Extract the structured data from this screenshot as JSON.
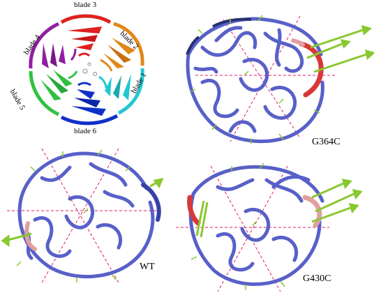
{
  "blade_labels": {
    "b1": "blade 1",
    "b2": "blade 2",
    "b3": "blade 3",
    "b4": "blade 4",
    "b5": "blade 5",
    "b6": "blade 6"
  },
  "panel_labels": {
    "g364c": "G364C",
    "wt": "WT",
    "g430c": "G430C"
  },
  "colors": {
    "blade1": "#20c8d0",
    "blade2": "#e08818",
    "blade3": "#e02020",
    "blade4": "#9020a0",
    "blade5": "#30c040",
    "blade6": "#1030c8",
    "tube": "#5860c8",
    "arrow": "#88c830",
    "axis": "#e01870",
    "hinge_red": "#d83838",
    "hinge_pink": "#e0a0a0"
  }
}
